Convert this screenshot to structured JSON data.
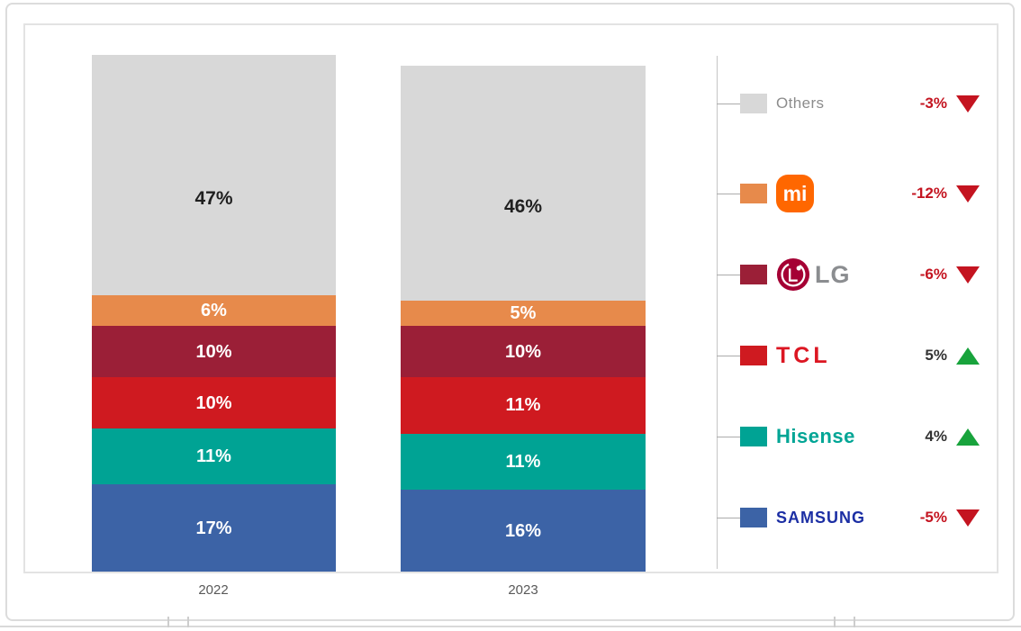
{
  "chart_data": {
    "type": "bar",
    "stacked": true,
    "title": "",
    "xlabel": "",
    "ylabel": "",
    "value_suffix": "%",
    "grid": false,
    "legend_position": "right",
    "categories": [
      "2022",
      "2023"
    ],
    "series": [
      {
        "name": "Others",
        "values": [
          47,
          46
        ],
        "color": "#d8d8d8",
        "label_color": "#1f1f1f",
        "brand_color": "#8c8c8c",
        "change": "-3%",
        "direction": "down"
      },
      {
        "name": "Mi",
        "values": [
          6,
          5
        ],
        "color": "#e78a4b",
        "logo_color": "#ff6700",
        "logo_text": "mi",
        "change": "-12%",
        "direction": "down"
      },
      {
        "name": "LG",
        "values": [
          10,
          10
        ],
        "color": "#9b1f37",
        "logo_color": "#a50034",
        "brand_color": "#8b8d90",
        "change": "-6%",
        "direction": "down"
      },
      {
        "name": "TCL",
        "values": [
          10,
          11
        ],
        "color": "#cf1a20",
        "brand_color": "#dc1622",
        "change": "5%",
        "direction": "up"
      },
      {
        "name": "Hisense",
        "values": [
          11,
          11
        ],
        "color": "#00a394",
        "brand_color": "#00a595",
        "change": "4%",
        "direction": "up"
      },
      {
        "name": "SAMSUNG",
        "values": [
          17,
          16
        ],
        "color": "#3c63a6",
        "brand_color": "#1c2fa4",
        "change": "-5%",
        "direction": "down"
      }
    ],
    "change_colors": {
      "down_text": "#c41420",
      "down_triangle": "#c41420",
      "up_text": "#333333",
      "up_triangle": "#18a33c"
    }
  }
}
